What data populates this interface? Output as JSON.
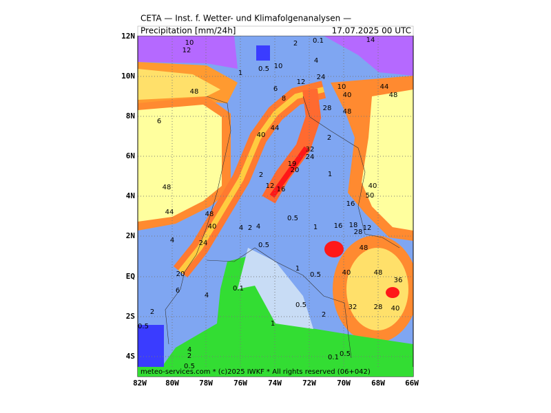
{
  "header": {
    "title": "CETA — Inst. f. Wetter- und Klimafolgenanalysen —",
    "product": "Precipitation [mm/24h]",
    "valid": "17.07.2025 00 UTC"
  },
  "footer": "meteo-services.com * (c)2025 IWKF * All rights reserved (06+042)",
  "axes": {
    "y_labels": [
      "12N",
      "10N",
      "8N",
      "6N",
      "4N",
      "2N",
      "EQ",
      "2S",
      "4S"
    ],
    "x_labels": [
      "82W",
      "80W",
      "78W",
      "76W",
      "74W",
      "72W",
      "70W",
      "68W",
      "66W"
    ]
  },
  "contour_labels": [
    "10",
    "12",
    "2",
    "0.1",
    "14",
    "10",
    "0.5",
    "1",
    "4",
    "6",
    "12",
    "24",
    "10",
    "40",
    "44",
    "48",
    "28",
    "48",
    "8",
    "48",
    "6",
    "40",
    "44",
    "32",
    "24",
    "2",
    "19",
    "20",
    "48",
    "2",
    "1",
    "12",
    "16",
    "40",
    "50",
    "16",
    "44",
    "48",
    "40",
    "4",
    "2",
    "4",
    "0.5",
    "1",
    "16",
    "18",
    "28",
    "12",
    "4",
    "24",
    "0.5",
    "48",
    "1",
    "0.5",
    "40",
    "48",
    "36",
    "20",
    "6",
    "0.1",
    "4",
    "2",
    "0.5",
    "2",
    "32",
    "28",
    "40",
    "0.5",
    "1",
    "4",
    "2",
    "0.5",
    "0.1",
    "0.5"
  ]
}
